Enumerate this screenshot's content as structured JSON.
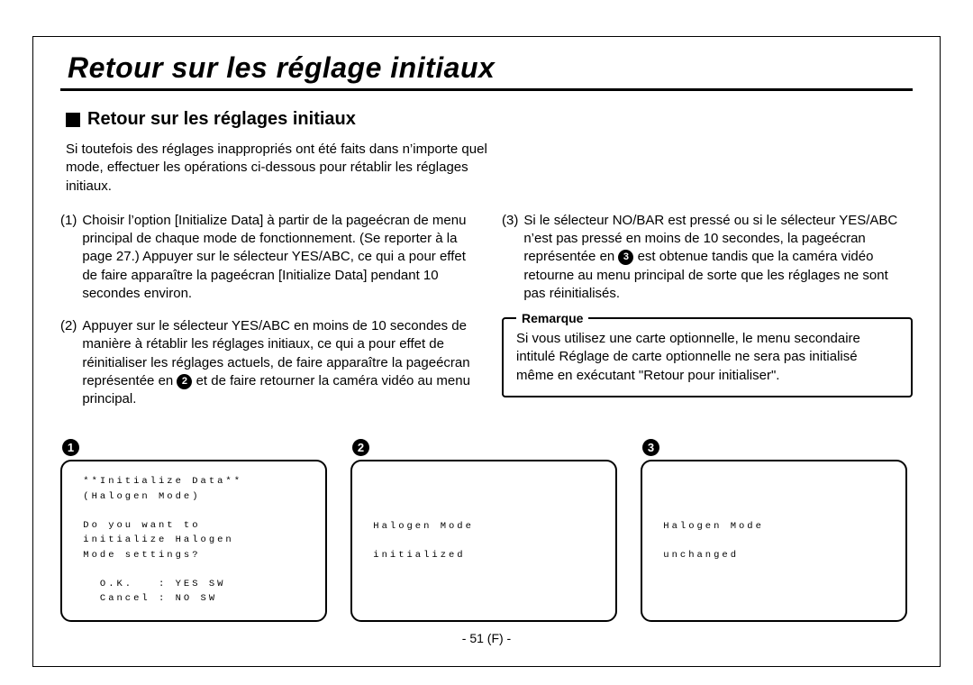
{
  "header": {
    "main_title": "Retour sur les réglage initiaux",
    "sub_title": "Retour sur les réglages initiaux"
  },
  "intro": "Si toutefois des réglages inappropriés ont été faits dans n’importe quel mode, effectuer les opérations ci-dessous pour rétablir les réglages initiaux.",
  "steps": {
    "s1_num": "(1)",
    "s1": "Choisir l’option [Initialize Data] à partir de la pageécran de menu principal de chaque mode de fonctionnement. (Se reporter à la page 27.) Appuyer sur le sélecteur YES/ABC, ce qui a pour effet de faire apparaître la pageécran [Initialize Data] pendant 10 secondes environ.",
    "s2_num": "(2)",
    "s2a": "Appuyer sur le sélecteur YES/ABC en moins de 10 secondes de manière à rétablir les réglages initiaux, ce qui a pour effet de réinitialiser les réglages actuels, de faire apparaître la pageécran représentée en ",
    "s2_badge": "2",
    "s2b": " et de faire retourner la caméra vidéo au menu principal.",
    "s3_num": "(3)",
    "s3a": "Si le sélecteur NO/BAR est pressé ou si le sélecteur YES/ABC n’est pas pressé en moins de 10 secondes, la pageécran représentée en ",
    "s3_badge": "3",
    "s3b": " est obtenue tandis que la caméra vidéo retourne au menu principal de sorte que les réglages ne sont pas réinitialisés."
  },
  "note": {
    "label": "Remarque",
    "text": "Si vous utilisez une carte optionnelle, le menu secondaire intitulé Réglage de carte optionnelle ne sera pas initialisé même en exécutant \"Retour pour initialiser\"."
  },
  "screens": {
    "b1": "1",
    "b2": "2",
    "b3": "3",
    "t1": " **Initialize Data**\n (Halogen Mode)\n\n Do you want to\n initialize Halogen\n Mode settings?\n\n   O.K.   : YES SW\n   Cancel : NO SW",
    "t2": " Halogen Mode\n\n initialized",
    "t3": " Halogen Mode\n\n unchanged"
  },
  "page_number": "- 51 (F) -"
}
